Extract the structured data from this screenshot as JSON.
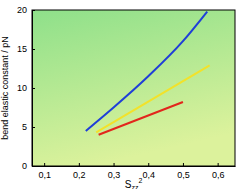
{
  "chart_data": {
    "type": "line",
    "x_label": {
      "text": "S",
      "sub": "zz",
      "sup": "2"
    },
    "y_label": "bend elastic constant / pN",
    "xlim": [
      0.065,
      0.65
    ],
    "ylim": [
      0,
      20
    ],
    "xticks": [
      {
        "value": 0.1,
        "label": "0,1"
      },
      {
        "value": 0.2,
        "label": "0,2"
      },
      {
        "value": 0.3,
        "label": "0,3"
      },
      {
        "value": 0.4,
        "label": "0,4"
      },
      {
        "value": 0.5,
        "label": "0,5"
      },
      {
        "value": 0.6,
        "label": "0,6"
      }
    ],
    "yticks": [
      0,
      5,
      10,
      15,
      20
    ],
    "grid": false,
    "series": [
      {
        "color": "#1f3fd8",
        "x": [
          0.22,
          0.3,
          0.4,
          0.5,
          0.57
        ],
        "values": [
          4.5,
          7.5,
          11.5,
          16,
          19.8
        ]
      },
      {
        "color": "#f2e22a",
        "x": [
          0.25,
          0.577
        ],
        "values": [
          4.3,
          12.9
        ]
      },
      {
        "color": "#e2261c",
        "x": [
          0.257,
          0.5
        ],
        "values": [
          4.0,
          8.2
        ]
      }
    ]
  }
}
